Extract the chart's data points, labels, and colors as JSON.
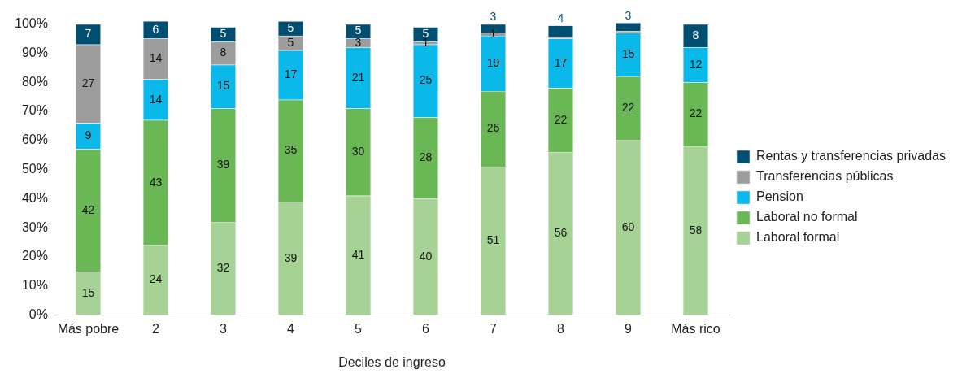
{
  "chart_data": {
    "type": "bar",
    "stacked": true,
    "xlabel": "Deciles de ingreso",
    "categories": [
      "Más pobre",
      "2",
      "3",
      "4",
      "5",
      "6",
      "7",
      "8",
      "9",
      "Más rico"
    ],
    "series": [
      {
        "name": "Laboral formal",
        "color": "#a6d395",
        "values": [
          15,
          24,
          32,
          39,
          41,
          40,
          51,
          56,
          60,
          58
        ]
      },
      {
        "name": "Laboral no formal",
        "color": "#6ab755",
        "values": [
          42,
          43,
          39,
          35,
          30,
          28,
          26,
          22,
          22,
          22
        ]
      },
      {
        "name": "Pension",
        "color": "#0ab9ea",
        "values": [
          9,
          14,
          15,
          17,
          21,
          25,
          19,
          17,
          15,
          12
        ]
      },
      {
        "name": "Transferencias públicas",
        "color": "#9d9d9d",
        "values": [
          27,
          14,
          8,
          5,
          3,
          1,
          1,
          0.5,
          0.5,
          null
        ],
        "value_labels": [
          "27",
          "14",
          "8",
          "5",
          "3",
          "1",
          "1",
          null,
          null,
          null
        ]
      },
      {
        "name": "Rentas y transferencias privadas",
        "color": "#004f71",
        "values": [
          7,
          6,
          5,
          5,
          5,
          5,
          3,
          4,
          3,
          8
        ]
      }
    ],
    "ylim": [
      0,
      101
    ],
    "yticks": [
      {
        "value": 0,
        "label": "0%"
      },
      {
        "value": 10,
        "label": "10%"
      },
      {
        "value": 20,
        "label": "20%"
      },
      {
        "value": 30,
        "label": "30%"
      },
      {
        "value": 40,
        "label": "40%"
      },
      {
        "value": 50,
        "label": "50%"
      },
      {
        "value": 60,
        "label": "60%"
      },
      {
        "value": 70,
        "label": "70%"
      },
      {
        "value": 80,
        "label": "80%"
      },
      {
        "value": 90,
        "label": "90%"
      },
      {
        "value": 100,
        "label": "100%"
      }
    ],
    "grid": false,
    "legend": "right",
    "data_labels": true
  }
}
